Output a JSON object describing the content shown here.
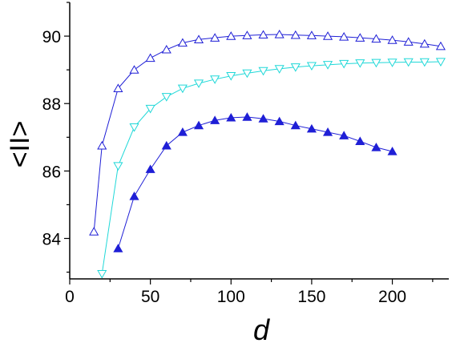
{
  "chart_data": {
    "type": "line",
    "title": "",
    "xlabel": "d",
    "ylabel": "<II>",
    "xlim": [
      0,
      235
    ],
    "ylim": [
      82.8,
      91
    ],
    "xticks": [
      0,
      50,
      100,
      150,
      200
    ],
    "yticks": [
      84,
      86,
      88,
      90
    ],
    "grid": false,
    "legend": "none",
    "series": [
      {
        "marker": "triangle-up-open",
        "color": "#1f1fd6",
        "x": [
          15,
          20,
          30,
          40,
          50,
          60,
          70,
          80,
          90,
          100,
          110,
          120,
          130,
          140,
          150,
          160,
          170,
          180,
          190,
          200,
          210,
          220,
          230
        ],
        "y": [
          84.2,
          86.75,
          88.45,
          89.0,
          89.35,
          89.6,
          89.8,
          89.9,
          89.95,
          90.0,
          90.02,
          90.04,
          90.05,
          90.03,
          90.02,
          90.0,
          89.98,
          89.95,
          89.92,
          89.88,
          89.83,
          89.77,
          89.7
        ]
      },
      {
        "marker": "triangle-down-open",
        "color": "#20d8d8",
        "x": [
          20,
          30,
          40,
          50,
          60,
          70,
          80,
          90,
          100,
          110,
          120,
          130,
          140,
          150,
          160,
          170,
          180,
          190,
          200,
          210,
          220,
          230
        ],
        "y": [
          82.95,
          86.15,
          87.3,
          87.85,
          88.2,
          88.45,
          88.6,
          88.72,
          88.82,
          88.9,
          88.97,
          89.03,
          89.08,
          89.12,
          89.15,
          89.18,
          89.2,
          89.21,
          89.22,
          89.23,
          89.23,
          89.24
        ]
      },
      {
        "marker": "triangle-up-filled",
        "color": "#1f1fd6",
        "x": [
          30,
          40,
          50,
          60,
          70,
          80,
          90,
          100,
          110,
          120,
          130,
          140,
          150,
          160,
          170,
          180,
          190,
          200
        ],
        "y": [
          83.7,
          85.25,
          86.05,
          86.75,
          87.15,
          87.35,
          87.5,
          87.58,
          87.6,
          87.55,
          87.47,
          87.35,
          87.25,
          87.15,
          87.05,
          86.88,
          86.7,
          86.58
        ]
      }
    ]
  }
}
